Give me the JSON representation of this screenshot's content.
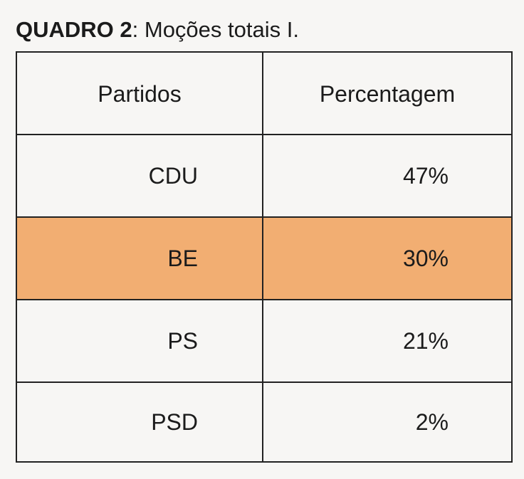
{
  "caption": {
    "label": "QUADRO 2",
    "text": ": Moções totais I."
  },
  "table": {
    "headers": [
      "Partidos",
      "Percentagem"
    ],
    "rows": [
      {
        "party": "CDU",
        "percent": "47%"
      },
      {
        "party": "BE",
        "percent": "30%",
        "highlighted": true
      },
      {
        "party": "PS",
        "percent": "21%"
      },
      {
        "party": "PSD",
        "percent": "2%"
      }
    ],
    "highlight_color": "#f2ae72"
  }
}
